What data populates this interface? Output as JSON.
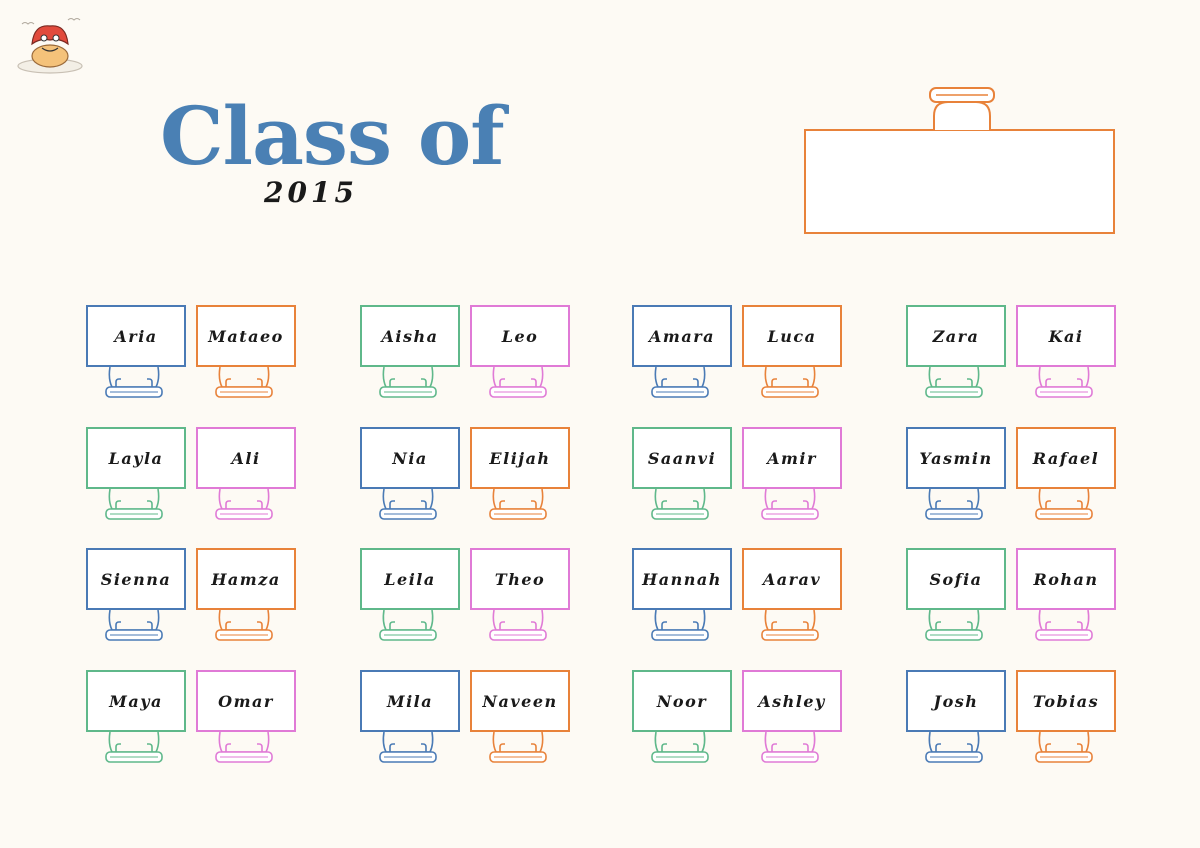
{
  "title": "Class of",
  "year": "2015",
  "colors": {
    "title": "#4a80b4",
    "blue": "#4a7ab5",
    "orange": "#e8823a",
    "green": "#5fb88a",
    "pink": "#e07ad6"
  },
  "teacher_desk": {
    "label": ""
  },
  "seats": [
    {
      "name": "Aria",
      "color": "blue"
    },
    {
      "name": "Mataeo",
      "color": "orange"
    },
    {
      "name": "Aisha",
      "color": "green"
    },
    {
      "name": "Leo",
      "color": "pink"
    },
    {
      "name": "Amara",
      "color": "blue"
    },
    {
      "name": "Luca",
      "color": "orange"
    },
    {
      "name": "Zara",
      "color": "green"
    },
    {
      "name": "Kai",
      "color": "pink"
    },
    {
      "name": "Layla",
      "color": "green"
    },
    {
      "name": "Ali",
      "color": "pink"
    },
    {
      "name": "Nia",
      "color": "blue"
    },
    {
      "name": "Elijah",
      "color": "orange"
    },
    {
      "name": "Saanvi",
      "color": "green"
    },
    {
      "name": "Amir",
      "color": "pink"
    },
    {
      "name": "Yasmin",
      "color": "blue"
    },
    {
      "name": "Rafael",
      "color": "orange"
    },
    {
      "name": "Sienna",
      "color": "blue"
    },
    {
      "name": "Hamza",
      "color": "orange"
    },
    {
      "name": "Leila",
      "color": "green"
    },
    {
      "name": "Theo",
      "color": "pink"
    },
    {
      "name": "Hannah",
      "color": "blue"
    },
    {
      "name": "Aarav",
      "color": "orange"
    },
    {
      "name": "Sofia",
      "color": "green"
    },
    {
      "name": "Rohan",
      "color": "pink"
    },
    {
      "name": "Maya",
      "color": "green"
    },
    {
      "name": "Omar",
      "color": "pink"
    },
    {
      "name": "Mila",
      "color": "blue"
    },
    {
      "name": "Naveen",
      "color": "orange"
    },
    {
      "name": "Noor",
      "color": "green"
    },
    {
      "name": "Ashley",
      "color": "pink"
    },
    {
      "name": "Josh",
      "color": "blue"
    },
    {
      "name": "Tobias",
      "color": "orange"
    }
  ]
}
